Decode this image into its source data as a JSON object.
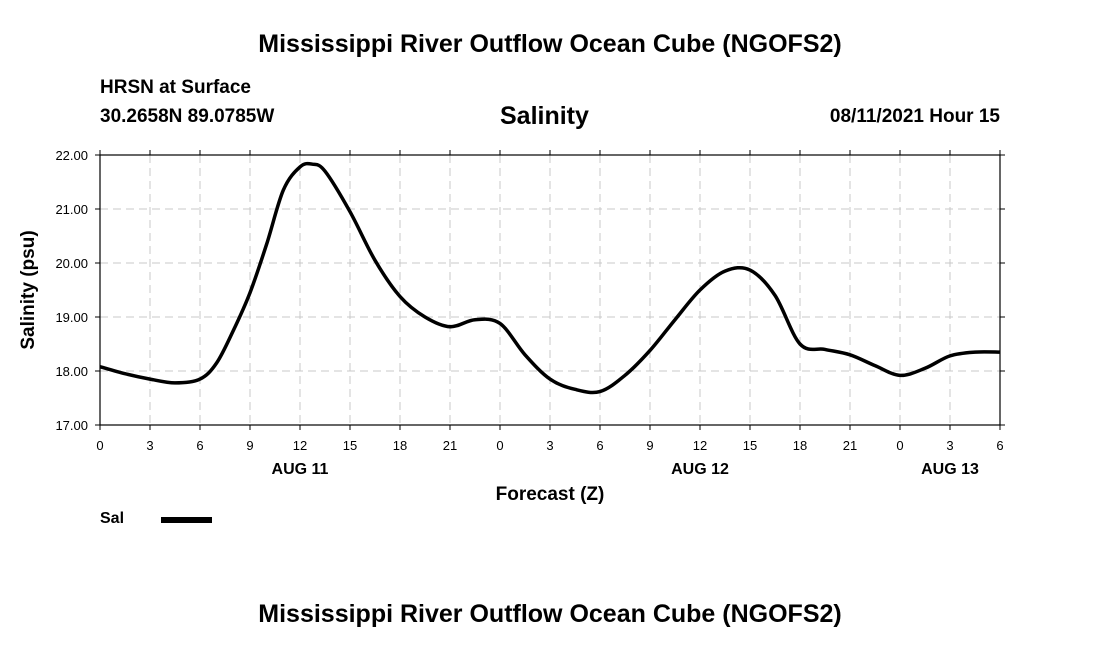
{
  "header": {
    "top_title": "Mississippi River Outflow Ocean Cube (NGOFS2)",
    "station_name": "HRSN at Surface",
    "station_coords": "30.2658N  89.0785W",
    "variable": "Salinity",
    "timestamp": "08/11/2021 Hour 15",
    "bottom_title": "Mississippi River Outflow Ocean Cube (NGOFS2)"
  },
  "legend": {
    "label": "Sal",
    "color": "#000000"
  },
  "chart_data": {
    "type": "line",
    "title": "Salinity",
    "xlabel": "Forecast (Z)",
    "ylabel": "Salinity (psu)",
    "xlim": [
      0,
      54
    ],
    "ylim": [
      17.0,
      22.0
    ],
    "grid": true,
    "x_ticks": [
      0,
      3,
      6,
      9,
      12,
      15,
      18,
      21,
      24,
      27,
      30,
      33,
      36,
      39,
      42,
      45,
      48,
      51,
      54
    ],
    "x_tick_labels": [
      "0",
      "3",
      "6",
      "9",
      "12",
      "15",
      "18",
      "21",
      "0",
      "3",
      "6",
      "9",
      "12",
      "15",
      "18",
      "21",
      "0",
      "3",
      "6"
    ],
    "y_ticks": [
      17.0,
      18.0,
      19.0,
      20.0,
      21.0,
      22.0
    ],
    "y_tick_labels": [
      "17.00",
      "18.00",
      "19.00",
      "20.00",
      "21.00",
      "22.00"
    ],
    "date_labels": [
      {
        "x": 12,
        "label": "AUG 11"
      },
      {
        "x": 36,
        "label": "AUG 12"
      },
      {
        "x": 51,
        "label": "AUG 13"
      }
    ],
    "series": [
      {
        "name": "Sal",
        "color": "#000000",
        "x": [
          0,
          1.5,
          3,
          4.5,
          6,
          7,
          8,
          9,
          10,
          11,
          12,
          12.75,
          13.5,
          15,
          16.5,
          18,
          19.5,
          21,
          22.5,
          24,
          25.5,
          27,
          28.5,
          30,
          31.5,
          33,
          34.5,
          36,
          37.5,
          39,
          40.5,
          42,
          43.5,
          45,
          46.5,
          48,
          49.5,
          51,
          52.5,
          54
        ],
        "values": [
          18.08,
          17.95,
          17.85,
          17.78,
          17.85,
          18.15,
          18.75,
          19.45,
          20.35,
          21.35,
          21.78,
          21.83,
          21.7,
          20.95,
          20.05,
          19.38,
          19.0,
          18.82,
          18.95,
          18.88,
          18.3,
          17.85,
          17.66,
          17.62,
          17.92,
          18.38,
          18.95,
          19.5,
          19.85,
          19.87,
          19.4,
          18.5,
          18.4,
          18.3,
          18.1,
          17.92,
          18.05,
          18.28,
          18.35,
          18.35
        ]
      }
    ]
  }
}
